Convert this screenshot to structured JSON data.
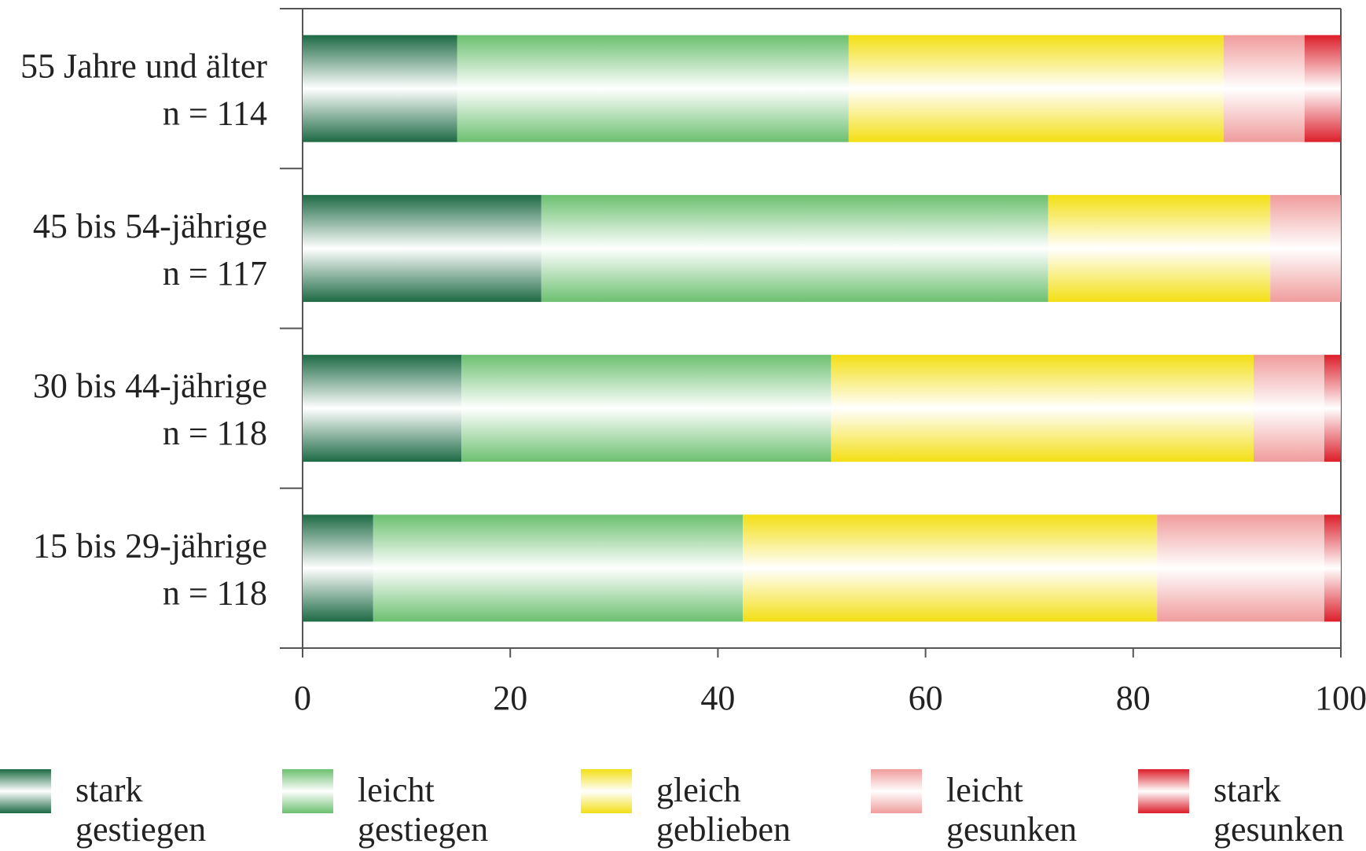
{
  "chart_data": {
    "type": "bar",
    "orientation": "horizontal",
    "stacked": true,
    "categories": [
      "55 Jahre und älter",
      "45 bis 54-jährige",
      "30 bis 44-jährige",
      "15 bis 29-jährige"
    ],
    "category_sublabels": [
      "n = 114",
      "n = 117",
      "n = 118",
      "n = 118"
    ],
    "series": [
      {
        "name": "stark gestiegen",
        "color": "#1d6a44",
        "values": [
          14.9,
          23.0,
          15.3,
          6.8
        ]
      },
      {
        "name": "leicht gestiegen",
        "color": "#6cc070",
        "values": [
          37.7,
          48.8,
          35.6,
          35.6
        ]
      },
      {
        "name": "gleich geblieben",
        "color": "#f3df14",
        "values": [
          36.1,
          21.4,
          40.7,
          39.9
        ]
      },
      {
        "name": "leicht gesunken",
        "color": "#f09c9c",
        "values": [
          7.8,
          6.8,
          6.8,
          16.1
        ]
      },
      {
        "name": "stark gesunken",
        "color": "#dc1e2a",
        "values": [
          3.5,
          0,
          1.6,
          1.6
        ]
      }
    ],
    "xlim": [
      0,
      100
    ],
    "xticks": [
      0,
      20,
      40,
      60,
      80,
      100
    ],
    "legend": "bottom"
  }
}
